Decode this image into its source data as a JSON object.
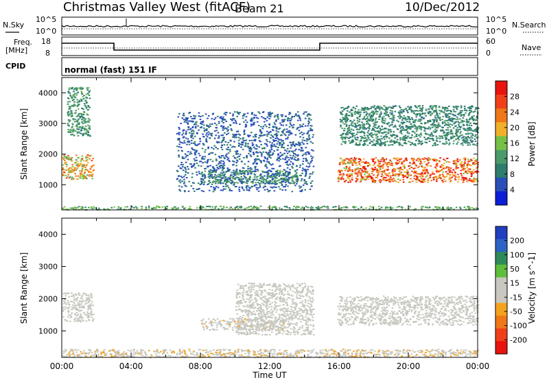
{
  "header": {
    "station": "Christmas Valley West (fitACF)",
    "beam": "Beam 21",
    "date": "10/Dec/2012"
  },
  "strip": {
    "nsky_label": "N.Sky",
    "nsky_ticks": [
      "10^5",
      "10^0"
    ],
    "nsearch_label": "N.Search",
    "nsearch_ticks": [
      "10^5",
      "10^0"
    ],
    "freq_label_1": "Freq.",
    "freq_label_2": "[MHz]",
    "freq_ticks": [
      "18",
      "8"
    ],
    "nave_label": "Nave",
    "nave_ticks": [
      "60",
      "0"
    ],
    "cpid_label": "CPID",
    "cpid_value": "normal (fast) 151 IF"
  },
  "colors": {
    "power_scale": [
      "#0a1fd6",
      "#2a4fb8",
      "#2e7d6d",
      "#4c9a6a",
      "#77c046",
      "#f2b02a",
      "#f07818",
      "#f0401a",
      "#e8140e"
    ],
    "velocity_scale": [
      "#1f3fbf",
      "#2d63c4",
      "#2f8a5a",
      "#5fbf3c",
      "#c8c8c0",
      "#c8c8c0",
      "#f4a21e",
      "#f07818",
      "#f0401a",
      "#e8140e"
    ]
  },
  "chart_data": [
    {
      "type": "heatmap",
      "title": "",
      "xlabel": "",
      "ylabel": "Slant Range [km]",
      "xlim": [
        0,
        24
      ],
      "ylim": [
        180,
        4500
      ],
      "yticks": [
        "1000",
        "2000",
        "3000",
        "4000"
      ],
      "colorbar": {
        "label": "Power [dB]",
        "ticks": [
          "4",
          "8",
          "12",
          "16",
          "20",
          "24",
          "28"
        ],
        "range": [
          0,
          30
        ]
      },
      "regions": [
        {
          "name": "early-high",
          "t": [
            0.0,
            1.8
          ],
          "range": [
            1200,
            2000
          ],
          "peak": 22
        },
        {
          "name": "early-top",
          "t": [
            0.3,
            1.6
          ],
          "range": [
            2600,
            4200
          ],
          "peak": 12
        },
        {
          "name": "main-band",
          "t": [
            8.0,
            13.6
          ],
          "range": [
            1050,
            1500
          ],
          "peak": 12
        },
        {
          "name": "arc",
          "t": [
            6.6,
            14.5
          ],
          "range": [
            800,
            3400
          ],
          "peak": 6
        },
        {
          "name": "evening-strong",
          "t": [
            15.9,
            24.0
          ],
          "range": [
            1100,
            1900
          ],
          "peak": 28
        },
        {
          "name": "evening-upper",
          "t": [
            16.0,
            24.0
          ],
          "range": [
            2300,
            3600
          ],
          "peak": 10
        },
        {
          "name": "ground",
          "t": [
            0.0,
            24.0
          ],
          "range": [
            200,
            320
          ],
          "peak": 14
        }
      ]
    },
    {
      "type": "heatmap",
      "title": "",
      "xlabel": "Time UT",
      "ylabel": "Slant Range [km]",
      "xlim": [
        0,
        24
      ],
      "ylim": [
        180,
        4500
      ],
      "xticks": [
        "00:00",
        "04:00",
        "08:00",
        "12:00",
        "16:00",
        "20:00",
        "00:00"
      ],
      "yticks": [
        "1000",
        "2000",
        "3000",
        "4000"
      ],
      "colorbar": {
        "label": "Velocity [m s^-1]",
        "ticks": [
          "200",
          "100",
          "50",
          "15",
          "-15",
          "-50",
          "-100",
          "-200"
        ],
        "range": [
          -250,
          250
        ]
      },
      "regions": [
        {
          "name": "early-grey",
          "t": [
            0.0,
            1.8
          ],
          "range": [
            1300,
            2200
          ],
          "velocity": 0
        },
        {
          "name": "main-band",
          "t": [
            8.0,
            13.0
          ],
          "range": [
            1050,
            1400
          ],
          "velocity": -30
        },
        {
          "name": "arc",
          "t": [
            10.0,
            14.5
          ],
          "range": [
            900,
            2500
          ],
          "velocity": 20
        },
        {
          "name": "evening-grey",
          "t": [
            15.9,
            24.0
          ],
          "range": [
            1200,
            2100
          ],
          "velocity": 0
        },
        {
          "name": "ground",
          "t": [
            0.0,
            24.0
          ],
          "range": [
            200,
            450
          ],
          "velocity": -40
        }
      ]
    }
  ]
}
